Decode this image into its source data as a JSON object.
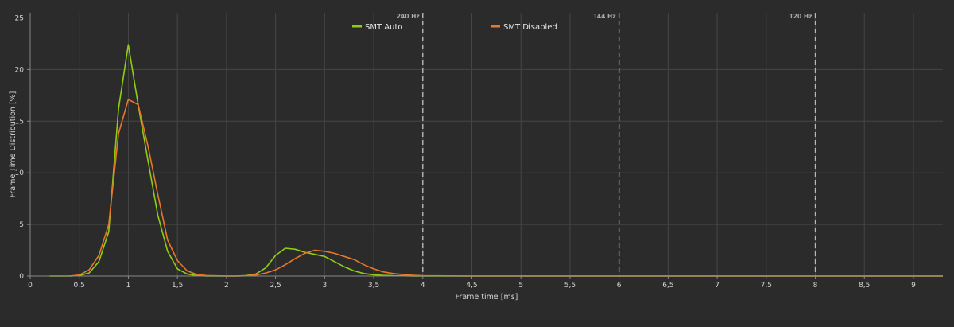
{
  "chart_data": {
    "type": "line",
    "xlabel": "Frame time [ms]",
    "ylabel": "Frame Time Distribution [%]",
    "xlim": [
      0,
      9.3
    ],
    "ylim": [
      0,
      25.5
    ],
    "x_ticks": [
      0,
      0.5,
      1,
      1.5,
      2,
      2.5,
      3,
      3.5,
      4,
      4.5,
      5,
      5.5,
      6,
      6.5,
      7,
      7.5,
      8,
      8.5,
      9
    ],
    "x_tick_labels": [
      "0",
      "0,5",
      "1",
      "1,5",
      "2",
      "2,5",
      "3",
      "3,5",
      "4",
      "4,5",
      "5",
      "5,5",
      "6",
      "6,5",
      "7",
      "7,5",
      "8",
      "8,5",
      "9"
    ],
    "y_ticks": [
      0,
      5,
      10,
      15,
      20,
      25
    ],
    "y_tick_labels": [
      "0",
      "5",
      "10",
      "15",
      "20",
      "25"
    ],
    "grid": true,
    "legend_position": "top",
    "annotations": [
      {
        "x": 4.0,
        "label": "240 Hz"
      },
      {
        "x": 6.0,
        "label": "144 Hz"
      },
      {
        "x": 8.0,
        "label": "120 Hz"
      }
    ],
    "series": [
      {
        "name": "SMT Auto",
        "color": "#8fce0e",
        "x": [
          0.2,
          0.3,
          0.4,
          0.5,
          0.6,
          0.7,
          0.8,
          0.9,
          1.0,
          1.1,
          1.2,
          1.3,
          1.4,
          1.5,
          1.6,
          1.7,
          1.8,
          1.9,
          2.0,
          2.1,
          2.2,
          2.3,
          2.4,
          2.5,
          2.6,
          2.7,
          2.8,
          2.9,
          3.0,
          3.1,
          3.2,
          3.3,
          3.4,
          3.5,
          3.6,
          3.7,
          3.8,
          3.9,
          4.0,
          4.5,
          5.0,
          6.0,
          7.0,
          8.0,
          9.0,
          9.3
        ],
        "y": [
          0.0,
          0.0,
          0.0,
          0.05,
          0.3,
          1.4,
          4.3,
          16.2,
          22.4,
          16.6,
          11.2,
          5.9,
          2.4,
          0.7,
          0.2,
          0.05,
          0.0,
          0.0,
          0.0,
          0.0,
          0.05,
          0.2,
          0.8,
          2.0,
          2.7,
          2.6,
          2.3,
          2.1,
          1.9,
          1.4,
          0.9,
          0.5,
          0.25,
          0.12,
          0.06,
          0.03,
          0.02,
          0.01,
          0.0,
          0.0,
          0.0,
          0.0,
          0.0,
          0.0,
          0.0,
          0.0
        ]
      },
      {
        "name": "SMT Disabled",
        "color": "#e8772a",
        "x": [
          0.4,
          0.5,
          0.6,
          0.7,
          0.8,
          0.9,
          1.0,
          1.1,
          1.2,
          1.3,
          1.4,
          1.5,
          1.6,
          1.7,
          1.8,
          1.9,
          2.0,
          2.1,
          2.2,
          2.3,
          2.4,
          2.5,
          2.6,
          2.7,
          2.8,
          2.9,
          3.0,
          3.1,
          3.2,
          3.3,
          3.4,
          3.5,
          3.6,
          3.7,
          3.8,
          3.9,
          4.0,
          4.5,
          5.0,
          6.0,
          7.0,
          8.0,
          9.0,
          9.3
        ],
        "y": [
          0.0,
          0.1,
          0.6,
          2.0,
          5.0,
          13.8,
          17.1,
          16.6,
          12.6,
          7.9,
          3.5,
          1.5,
          0.5,
          0.15,
          0.05,
          0.02,
          0.0,
          0.0,
          0.02,
          0.1,
          0.3,
          0.6,
          1.1,
          1.7,
          2.2,
          2.5,
          2.4,
          2.2,
          1.9,
          1.6,
          1.1,
          0.7,
          0.4,
          0.25,
          0.15,
          0.08,
          0.03,
          0.0,
          0.0,
          0.0,
          0.0,
          0.0,
          0.0,
          0.0
        ]
      }
    ]
  }
}
